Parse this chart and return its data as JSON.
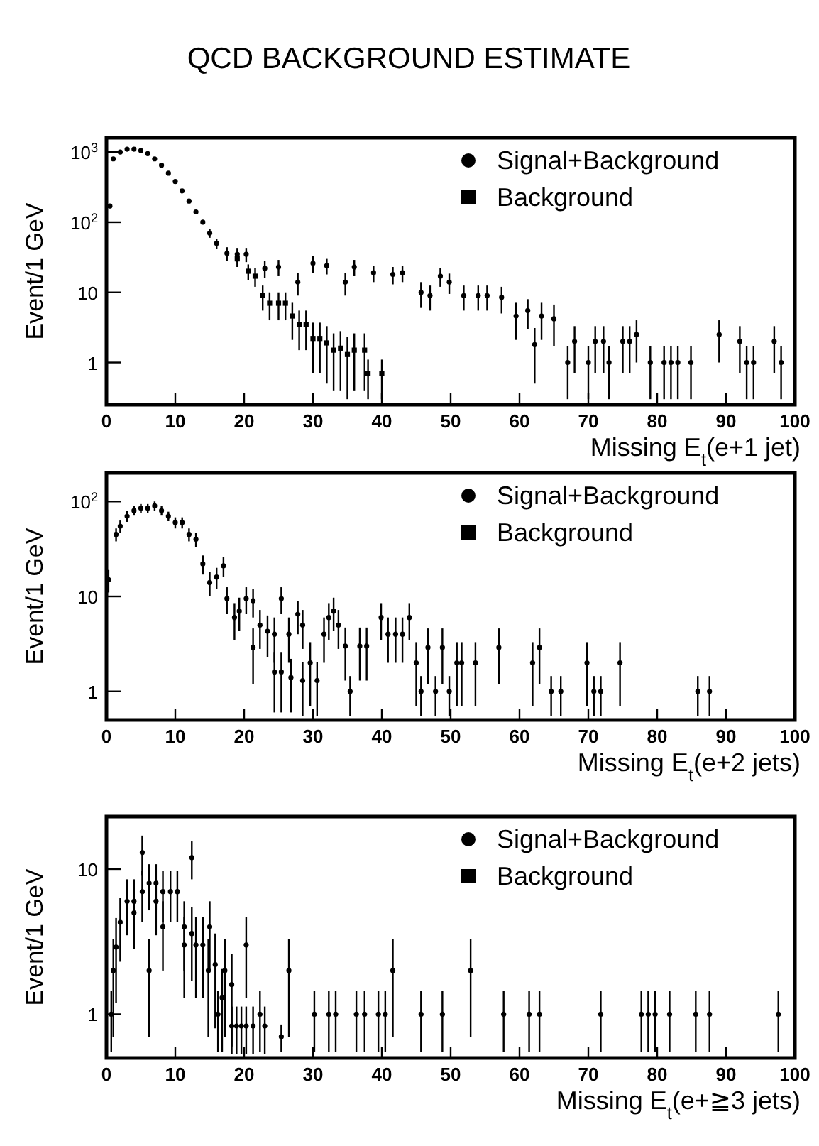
{
  "chart_data": [
    {
      "type": "scatter",
      "title": "QCD BACKGROUND ESTIMATE",
      "xlabel": "Missing E$_{t}$(e+1 jet)",
      "ylabel": "Event/1 GeV",
      "log": "y",
      "legend": "top right",
      "xlim": [
        0,
        100
      ],
      "xticks": [
        0,
        10,
        20,
        30,
        40,
        50,
        60,
        70,
        80,
        90,
        100
      ],
      "ylim": [
        0.25,
        1600
      ],
      "yticks": [
        {
          "value": 1,
          "label": "1"
        },
        {
          "value": 10,
          "label": "10"
        },
        {
          "value": 100,
          "label": "10$^{2}$"
        },
        {
          "value": 1000,
          "label": "10$^{3}$"
        }
      ],
      "series": [
        {
          "name": "Signal+Background",
          "color": "#000000",
          "marker": "circle",
          "x": [
            0.5,
            1,
            2,
            3,
            4,
            5,
            6,
            7,
            8,
            9,
            10,
            11,
            12,
            13,
            14,
            15,
            16,
            17.5,
            19,
            20.3,
            23,
            25,
            27.8,
            30,
            32,
            34.7,
            36,
            38.8,
            41.6,
            43,
            45.7,
            47,
            48.5,
            49.8,
            51.9,
            54,
            55.3,
            57.4,
            59.5,
            61.2,
            62.2,
            63.2,
            65,
            67,
            68,
            70,
            71,
            72.2,
            73,
            75,
            76,
            77,
            79,
            81,
            82,
            83,
            84.9,
            89,
            92,
            93,
            94,
            97,
            98
          ],
          "values": [
            170,
            800,
            1000,
            1100,
            1100,
            1050,
            950,
            800,
            650,
            500,
            380,
            280,
            200,
            140,
            100,
            70,
            50,
            36,
            35,
            35,
            22,
            23,
            14,
            26,
            24,
            14,
            23,
            19,
            18,
            19,
            10,
            9,
            17,
            14,
            9,
            9,
            9,
            8.5,
            4.6,
            5.5,
            1.8,
            4.6,
            4.2,
            1,
            2,
            1,
            2,
            2,
            1,
            2,
            2,
            2.5,
            1,
            1,
            1,
            1,
            1,
            2.5,
            2,
            1,
            1,
            2,
            1
          ],
          "errors": [
            null,
            null,
            null,
            null,
            null,
            null,
            null,
            null,
            null,
            null,
            null,
            null,
            null,
            null,
            null,
            10,
            8,
            8,
            8,
            8,
            6,
            6,
            5,
            7,
            6,
            5,
            6,
            5,
            5,
            5,
            4,
            3.5,
            5,
            4.5,
            3.5,
            3.5,
            3.5,
            3.5,
            2.5,
            2.5,
            1.3,
            2.5,
            2.5,
            0.7,
            1.3,
            0.7,
            1.3,
            1.3,
            0.7,
            1.3,
            1.3,
            1.5,
            0.7,
            0.7,
            0.7,
            0.7,
            0.7,
            1.5,
            1.3,
            0.7,
            0.7,
            1.3,
            0.7
          ]
        },
        {
          "name": "Background",
          "color": "#000000",
          "marker": "square",
          "x": [
            19,
            20.6,
            21.6,
            22.7,
            23.7,
            25,
            26,
            27,
            28,
            29,
            30,
            31,
            32,
            33,
            34,
            35,
            36,
            37.5,
            38,
            40
          ],
          "values": [
            30,
            20,
            17,
            9,
            7,
            7,
            7,
            4.6,
            3.5,
            3.5,
            2.2,
            2.2,
            1.9,
            1.5,
            1.6,
            1.3,
            1.5,
            1.5,
            0.7,
            0.7
          ],
          "errors": [
            7,
            5,
            5,
            3.5,
            3,
            3,
            3,
            2.5,
            2,
            2,
            1.5,
            1.5,
            1.4,
            1.1,
            1.2,
            1,
            1.1,
            1.1,
            0.4,
            0.4
          ]
        }
      ]
    },
    {
      "type": "scatter",
      "xlabel": "Missing E$_{t}$(e+2 jets)",
      "ylabel": "Event/1 GeV",
      "log": "y",
      "legend": "top right",
      "xlim": [
        0,
        100
      ],
      "xticks": [
        0,
        10,
        20,
        30,
        40,
        50,
        60,
        70,
        80,
        90,
        100
      ],
      "ylim": [
        0.5,
        200
      ],
      "yticks": [
        {
          "value": 1,
          "label": "1"
        },
        {
          "value": 10,
          "label": "10"
        },
        {
          "value": 100,
          "label": "10$^{2}$"
        }
      ],
      "series": [
        {
          "name": "Signal+Background",
          "color": "#000000",
          "marker": "circle",
          "x": [
            0.3,
            1.4,
            2,
            3,
            4,
            5,
            6,
            7,
            8,
            9,
            10,
            11,
            12,
            13,
            14,
            15,
            16,
            17,
            17.5,
            18.6,
            19.3,
            20.3,
            21.3,
            21.3,
            22.3,
            23.4,
            24.4,
            24.4,
            25.4,
            25.4,
            26.5,
            26.8,
            27.8,
            28.5,
            28.5,
            29.6,
            30.6,
            31.6,
            32.3,
            33,
            33.7,
            34.7,
            35.4,
            36.8,
            37.8,
            39.9,
            40.9,
            42,
            43,
            44,
            45,
            45.7,
            46.7,
            47.8,
            48.8,
            49.8,
            50.9,
            51.6,
            53.6,
            57,
            61.9,
            62.9,
            64.6,
            66,
            69.8,
            70.8,
            71.8,
            74.6,
            85.9,
            87.6
          ],
          "values": [
            15,
            45,
            55,
            70,
            80,
            85,
            85,
            90,
            80,
            70,
            60,
            60,
            45,
            40,
            22,
            14,
            16,
            21,
            9.5,
            6,
            7,
            9.5,
            9,
            2.9,
            5,
            4.3,
            4,
            1.6,
            1.6,
            9.5,
            4,
            1.4,
            6.5,
            5,
            1.3,
            2,
            1.3,
            4,
            6,
            7,
            5,
            3,
            1,
            3,
            3,
            6,
            4,
            4,
            4,
            6,
            2,
            1,
            2.9,
            1,
            2.9,
            1,
            2,
            2,
            2,
            2.9,
            2,
            2.9,
            1,
            1,
            2,
            1,
            1,
            2,
            1,
            1
          ],
          "errors": [
            4,
            7,
            8,
            9,
            9,
            9,
            9,
            10,
            9,
            8,
            8,
            8,
            7,
            7,
            5,
            4,
            4,
            5,
            3,
            2.5,
            2.7,
            3,
            3,
            1.7,
            2.2,
            2,
            2,
            1,
            1,
            3,
            2,
            0.8,
            2.5,
            2.2,
            0.75,
            1.3,
            0.75,
            2,
            2.5,
            2.7,
            2.2,
            1.7,
            0.45,
            1.7,
            1.7,
            2.5,
            2,
            2,
            2,
            2.5,
            1.3,
            0.45,
            1.7,
            0.45,
            1.7,
            0.45,
            1.3,
            1.3,
            1.3,
            1.7,
            1.3,
            1.7,
            0.45,
            0.45,
            1.3,
            0.45,
            0.45,
            1.3,
            0.45,
            0.45
          ]
        },
        {
          "name": "Background",
          "color": "#000000",
          "marker": "square"
        }
      ]
    },
    {
      "type": "scatter",
      "xlabel": "Missing E$_{t}$(e+≧3 jets)",
      "ylabel": "Event/1 GeV",
      "log": "y",
      "legend": "top right",
      "xlim": [
        0,
        100
      ],
      "xticks": [
        0,
        10,
        20,
        30,
        40,
        50,
        60,
        70,
        80,
        90,
        100
      ],
      "ylim": [
        0.5,
        23
      ],
      "yticks": [
        1,
        10
      ],
      "series": [
        {
          "name": "Signal+Background",
          "color": "#000000",
          "marker": "circle",
          "x": [
            0.7,
            1,
            1.4,
            2,
            3,
            4,
            4,
            5.2,
            5.2,
            6.2,
            6.2,
            7.2,
            7.2,
            8.2,
            8.2,
            9.3,
            10.3,
            11.3,
            11.3,
            12.4,
            12.4,
            13,
            14,
            14.8,
            15,
            15.8,
            16.2,
            16.8,
            17.2,
            18.2,
            18.2,
            18.9,
            19.6,
            20.3,
            20.3,
            21.3,
            22.3,
            23,
            25.4,
            26.5,
            30.2,
            32.3,
            33.3,
            36.3,
            37.5,
            39.5,
            40.5,
            41.6,
            45.7,
            48.8,
            52.9,
            57.7,
            61.4,
            62.9,
            71.8,
            77.7,
            78.7,
            79.7,
            81.8,
            85.6,
            87.6,
            97.6
          ],
          "values": [
            1,
            2,
            2.9,
            4.3,
            6,
            6,
            5,
            13,
            7,
            2,
            8,
            8,
            6,
            4,
            7,
            7,
            7,
            4,
            3,
            12,
            3.6,
            3,
            3,
            2,
            4,
            2.2,
            1,
            1.3,
            2,
            1.6,
            0.83,
            0.83,
            0.83,
            3,
            0.83,
            0.83,
            1,
            0.83,
            0.7,
            2,
            1,
            1,
            1,
            1,
            1,
            1,
            1,
            2,
            1,
            1,
            2,
            1,
            1,
            1,
            1,
            1,
            1,
            1,
            1,
            1,
            1,
            1
          ],
          "errors": [
            0.45,
            1.3,
            1.7,
            2,
            2.5,
            2.5,
            2.2,
            4,
            2.7,
            1.3,
            2.8,
            2.8,
            2.5,
            2,
            2.7,
            2.7,
            2.7,
            2,
            1.7,
            3.5,
            1.9,
            1.7,
            1.7,
            1.3,
            2,
            1.4,
            0.45,
            0.75,
            1.3,
            1,
            0.3,
            0.3,
            0.3,
            1.7,
            0.3,
            0.3,
            0.45,
            0.3,
            0.15,
            1.3,
            0.45,
            0.45,
            0.45,
            0.45,
            0.45,
            0.45,
            0.45,
            1.3,
            0.45,
            0.45,
            1.3,
            0.45,
            0.45,
            0.45,
            0.45,
            0.45,
            0.45,
            0.45,
            0.45,
            0.45,
            0.45,
            0.45
          ]
        },
        {
          "name": "Background",
          "color": "#000000",
          "marker": "square"
        }
      ]
    }
  ]
}
